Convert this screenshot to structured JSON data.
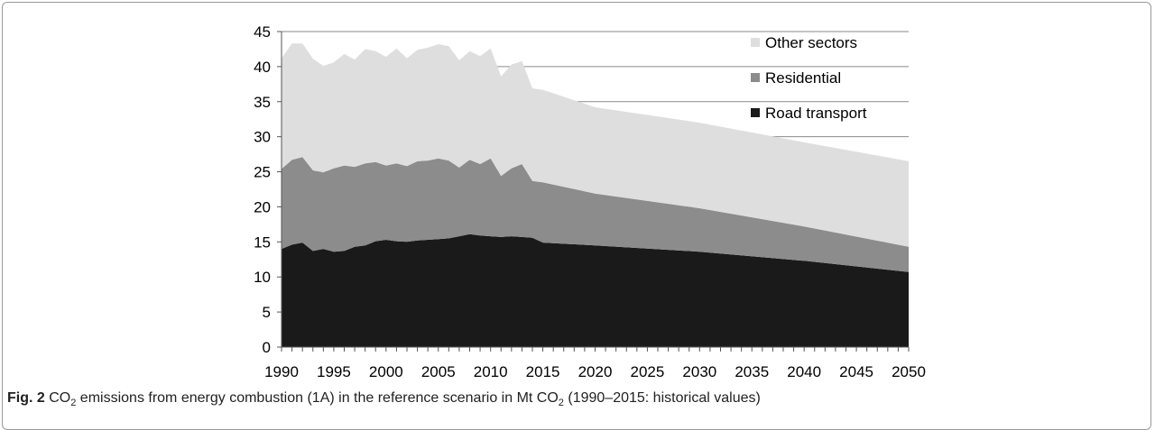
{
  "caption": {
    "label": "Fig. 2",
    "text_a": " CO",
    "sub_a": "2",
    "text_b": " emissions from energy combustion (1A) in the reference scenario in Mt CO",
    "sub_b": "2",
    "text_c": " (1990–2015: historical values)"
  },
  "chart_data": {
    "type": "area",
    "stacked": true,
    "title": "",
    "xlabel": "",
    "ylabel": "",
    "x": [
      1990,
      1991,
      1992,
      1993,
      1994,
      1995,
      1996,
      1997,
      1998,
      1999,
      2000,
      2001,
      2002,
      2003,
      2004,
      2005,
      2006,
      2007,
      2008,
      2009,
      2010,
      2011,
      2012,
      2013,
      2014,
      2015,
      2020,
      2030,
      2040,
      2050
    ],
    "xlim": [
      1990,
      2050
    ],
    "ylim": [
      0,
      45
    ],
    "xticks": [
      1990,
      1995,
      2000,
      2005,
      2010,
      2015,
      2020,
      2025,
      2030,
      2035,
      2040,
      2045,
      2050
    ],
    "yticks": [
      0,
      5,
      10,
      15,
      20,
      25,
      30,
      35,
      40,
      45
    ],
    "grid": "horizontal",
    "legend_position": "top-right",
    "series": [
      {
        "name": "Road transport",
        "color": "#1a1a1a",
        "values": [
          14.0,
          14.6,
          14.9,
          13.7,
          14.0,
          13.6,
          13.7,
          14.3,
          14.5,
          15.1,
          15.3,
          15.1,
          15.0,
          15.2,
          15.3,
          15.4,
          15.5,
          15.8,
          16.1,
          15.9,
          15.8,
          15.7,
          15.8,
          15.7,
          15.6,
          14.9,
          14.5,
          13.6,
          12.3,
          10.7
        ]
      },
      {
        "name": "Residential",
        "color": "#8c8c8c",
        "values": [
          11.4,
          12.1,
          12.2,
          11.5,
          10.9,
          11.9,
          12.2,
          11.4,
          11.7,
          11.3,
          10.6,
          11.1,
          10.8,
          11.3,
          11.3,
          11.5,
          11.1,
          9.8,
          10.6,
          10.2,
          11.1,
          8.7,
          9.7,
          10.4,
          8.1,
          8.6,
          7.4,
          6.2,
          4.9,
          3.6
        ]
      },
      {
        "name": "Other sectors",
        "color": "#dedede",
        "values": [
          15.8,
          16.6,
          16.2,
          15.9,
          15.2,
          15.1,
          15.9,
          15.3,
          16.3,
          15.8,
          15.5,
          16.4,
          15.4,
          15.9,
          16.1,
          16.3,
          16.3,
          15.3,
          15.5,
          15.4,
          15.7,
          14.2,
          14.8,
          14.7,
          13.2,
          13.2,
          12.3,
          12.2,
          12.0,
          12.2
        ]
      }
    ]
  }
}
